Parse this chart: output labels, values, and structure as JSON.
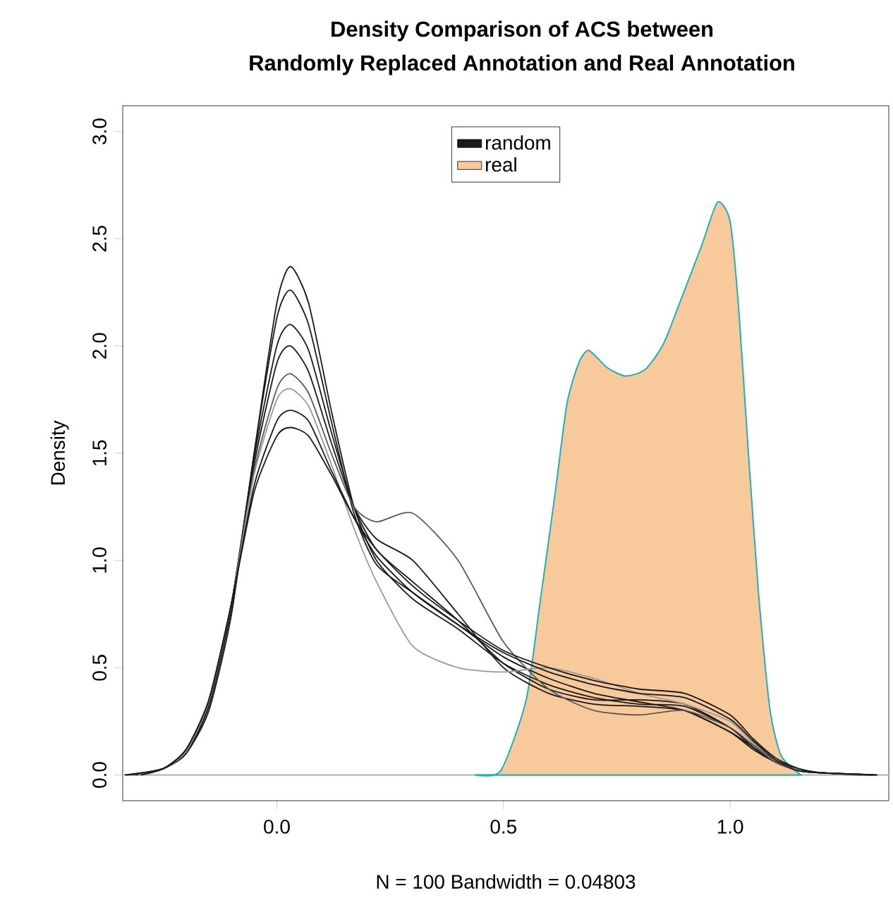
{
  "chart_data": {
    "type": "line",
    "title": "Density Comparison of ACS between",
    "subtitle": "Randomly Replaced Annotation and Real Annotation",
    "xlabel": "N = 100   Bandwidth = 0.04803",
    "ylabel": "Density",
    "xlim": [
      -0.34,
      1.35
    ],
    "ylim": [
      -0.12,
      3.12
    ],
    "xticks": [
      {
        "value": 0,
        "label": "0.0"
      },
      0.5,
      {
        "value": 1,
        "label": "1.0"
      }
    ],
    "yticks": [
      {
        "value": 0,
        "label": "0.0"
      },
      0.5,
      {
        "value": 1,
        "label": "1.0"
      },
      1.5,
      {
        "value": 2,
        "label": "2.0"
      },
      2.5,
      {
        "value": 3,
        "label": "3.0"
      }
    ],
    "legend": "top",
    "grid": false,
    "ref_lines": [
      {
        "axis": "y",
        "value": 0,
        "color": "#bebebe"
      }
    ],
    "series": [
      {
        "name": "random",
        "color": "#1a1a1a",
        "x": [
          -0.32,
          -0.25,
          -0.2,
          -0.15,
          -0.1,
          -0.05,
          0,
          0.03,
          0.07,
          0.12,
          0.17,
          0.22,
          0.3,
          0.4,
          0.5,
          0.6,
          0.7,
          0.8,
          0.9,
          1.0,
          1.05,
          1.1,
          1.15,
          1.2,
          1.3
        ],
        "values": [
          0,
          0.03,
          0.1,
          0.3,
          0.75,
          1.5,
          2.2,
          2.37,
          2.2,
          1.7,
          1.25,
          1.0,
          0.82,
          0.68,
          0.52,
          0.42,
          0.36,
          0.33,
          0.32,
          0.22,
          0.14,
          0.07,
          0.03,
          0.01,
          0
        ]
      },
      {
        "color": "#1a1a1a",
        "x": [
          -0.31,
          -0.25,
          -0.2,
          -0.15,
          -0.1,
          -0.05,
          0,
          0.03,
          0.07,
          0.12,
          0.17,
          0.22,
          0.3,
          0.4,
          0.5,
          0.6,
          0.7,
          0.8,
          0.9,
          1.0,
          1.05,
          1.1,
          1.15,
          1.2,
          1.31
        ],
        "values": [
          0,
          0.03,
          0.1,
          0.32,
          0.78,
          1.5,
          2.13,
          2.26,
          2.1,
          1.65,
          1.22,
          0.98,
          0.85,
          0.7,
          0.55,
          0.45,
          0.38,
          0.34,
          0.3,
          0.2,
          0.13,
          0.06,
          0.02,
          0.01,
          0
        ]
      },
      {
        "color": "#1a1a1a",
        "x": [
          -0.33,
          -0.25,
          -0.2,
          -0.15,
          -0.1,
          -0.05,
          0,
          0.03,
          0.07,
          0.12,
          0.17,
          0.22,
          0.3,
          0.4,
          0.5,
          0.6,
          0.7,
          0.8,
          0.9,
          1.0,
          1.05,
          1.1,
          1.15,
          1.2,
          1.29
        ],
        "values": [
          0,
          0.03,
          0.11,
          0.33,
          0.8,
          1.48,
          2.0,
          2.1,
          1.98,
          1.6,
          1.25,
          1.05,
          0.9,
          0.72,
          0.52,
          0.4,
          0.35,
          0.35,
          0.33,
          0.22,
          0.13,
          0.06,
          0.02,
          0.01,
          0
        ]
      },
      {
        "color": "#1a1a1a",
        "x": [
          -0.315,
          -0.25,
          -0.2,
          -0.15,
          -0.1,
          -0.05,
          0,
          0.03,
          0.07,
          0.12,
          0.17,
          0.22,
          0.3,
          0.4,
          0.5,
          0.6,
          0.7,
          0.8,
          0.9,
          1.0,
          1.05,
          1.1,
          1.15,
          1.2,
          1.32
        ],
        "values": [
          0,
          0.03,
          0.11,
          0.33,
          0.8,
          1.45,
          1.92,
          2.0,
          1.88,
          1.55,
          1.25,
          1.1,
          1.0,
          0.75,
          0.5,
          0.38,
          0.33,
          0.32,
          0.3,
          0.2,
          0.12,
          0.06,
          0.02,
          0.01,
          0
        ]
      },
      {
        "color": "#5a5a5a",
        "x": [
          -0.325,
          -0.25,
          -0.2,
          -0.15,
          -0.1,
          -0.05,
          0,
          0.03,
          0.07,
          0.12,
          0.17,
          0.22,
          0.3,
          0.4,
          0.5,
          0.6,
          0.7,
          0.8,
          0.9,
          1.0,
          1.05,
          1.1,
          1.15,
          1.2,
          1.28
        ],
        "values": [
          0,
          0.03,
          0.11,
          0.34,
          0.8,
          1.42,
          1.8,
          1.87,
          1.78,
          1.5,
          1.25,
          1.18,
          1.22,
          1.0,
          0.62,
          0.4,
          0.3,
          0.28,
          0.3,
          0.22,
          0.14,
          0.06,
          0.02,
          0.01,
          0
        ]
      },
      {
        "color": "#9a9a9a",
        "x": [
          -0.305,
          -0.25,
          -0.2,
          -0.15,
          -0.1,
          -0.05,
          0,
          0.03,
          0.07,
          0.12,
          0.17,
          0.22,
          0.3,
          0.4,
          0.5,
          0.6,
          0.7,
          0.8,
          0.9,
          1.0,
          1.05,
          1.1,
          1.15,
          1.2,
          1.305
        ],
        "values": [
          0,
          0.03,
          0.11,
          0.34,
          0.8,
          1.4,
          1.75,
          1.8,
          1.72,
          1.45,
          1.15,
          0.9,
          0.6,
          0.5,
          0.48,
          0.5,
          0.45,
          0.38,
          0.33,
          0.25,
          0.15,
          0.07,
          0.02,
          0.01,
          0
        ]
      },
      {
        "color": "#1a1a1a",
        "x": [
          -0.335,
          -0.25,
          -0.2,
          -0.15,
          -0.1,
          -0.05,
          0,
          0.03,
          0.07,
          0.12,
          0.17,
          0.22,
          0.3,
          0.4,
          0.5,
          0.6,
          0.7,
          0.8,
          0.9,
          1.0,
          1.05,
          1.1,
          1.15,
          1.2,
          1.315
        ],
        "values": [
          0,
          0.03,
          0.12,
          0.35,
          0.8,
          1.35,
          1.65,
          1.7,
          1.65,
          1.42,
          1.2,
          1.02,
          0.85,
          0.7,
          0.57,
          0.48,
          0.42,
          0.38,
          0.36,
          0.26,
          0.16,
          0.07,
          0.02,
          0.01,
          0
        ]
      },
      {
        "color": "#1a1a1a",
        "x": [
          -0.3,
          -0.25,
          -0.2,
          -0.15,
          -0.1,
          -0.05,
          0,
          0.03,
          0.07,
          0.12,
          0.17,
          0.22,
          0.3,
          0.4,
          0.5,
          0.6,
          0.7,
          0.8,
          0.9,
          1.0,
          1.05,
          1.1,
          1.15,
          1.2,
          1.325
        ],
        "values": [
          0,
          0.03,
          0.12,
          0.35,
          0.8,
          1.32,
          1.58,
          1.62,
          1.58,
          1.4,
          1.2,
          1.05,
          0.88,
          0.72,
          0.58,
          0.5,
          0.44,
          0.4,
          0.38,
          0.28,
          0.17,
          0.08,
          0.03,
          0.01,
          0
        ]
      },
      {
        "name": "real",
        "type": "area",
        "color": "#f8c99b",
        "x": [
          0.4375,
          0.494,
          0.55,
          0.581,
          0.6125,
          0.64,
          0.666,
          0.688,
          0.728,
          0.769,
          0.8125,
          0.853,
          0.894,
          0.9375,
          0.972,
          1.0,
          1.019,
          1.04,
          1.0625,
          1.0875,
          1.1125,
          1.156
        ],
        "values": [
          0,
          0.02,
          0.35,
          0.81,
          1.29,
          1.73,
          1.92,
          1.98,
          1.9,
          1.86,
          1.89,
          2.01,
          2.23,
          2.47,
          2.67,
          2.58,
          2.17,
          1.51,
          0.85,
          0.31,
          0.09,
          0
        ]
      }
    ]
  }
}
